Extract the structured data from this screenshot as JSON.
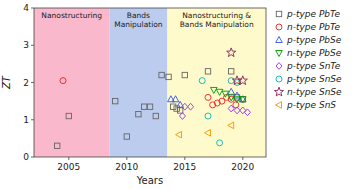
{
  "chart_data": {
    "type": "scatter",
    "xlabel": "Years",
    "ylabel": "ZT",
    "xlim": [
      2002,
      2022
    ],
    "ylim": [
      0,
      4
    ],
    "xticks": [
      2005,
      2010,
      2015,
      2020
    ],
    "yticks": [
      0,
      1,
      2,
      3,
      4
    ],
    "grid": false,
    "legend": "right",
    "regions": [
      {
        "xmin": 2002,
        "xmax": 2008.5,
        "color": "#F9B8CC",
        "label": "Nanostructuring"
      },
      {
        "xmin": 2008.5,
        "xmax": 2013.5,
        "color": "#BBCCEE",
        "label": "Bands\nManipulation"
      },
      {
        "xmin": 2013.5,
        "xmax": 2022,
        "color": "#FFFACC",
        "label": "Nanostructuring &\nBands Manipulation"
      }
    ],
    "series": [
      {
        "name": "p-type PbTe",
        "marker": "square",
        "color": "#666666",
        "x": [
          2004,
          2005,
          2009,
          2010,
          2011,
          2011.5,
          2012,
          2012.5,
          2013,
          2013.6,
          2014.0,
          2014.3,
          2014.6,
          2015,
          2017,
          2019,
          2019.5,
          2020
        ],
        "values": [
          0.3,
          1.1,
          1.5,
          0.55,
          1.15,
          1.35,
          1.35,
          1.1,
          2.2,
          2.15,
          1.35,
          1.3,
          1.25,
          2.2,
          2.3,
          2.3,
          1.6,
          1.55
        ]
      },
      {
        "name": "n-type PbTe",
        "marker": "circle",
        "color": "#EE2222",
        "x": [
          2004.5,
          2017,
          2017.4,
          2017.8,
          2018.2,
          2018.6,
          2019.0,
          2019.4
        ],
        "values": [
          2.05,
          1.6,
          1.4,
          1.45,
          1.5,
          1.6,
          1.55,
          1.4
        ]
      },
      {
        "name": "p-type PbSe",
        "marker": "triangle-up",
        "color": "#3355EE",
        "x": [
          2013.8,
          2014.2,
          2014.6,
          2019.0,
          2019.5,
          2020.0
        ],
        "values": [
          1.55,
          1.55,
          1.4,
          1.75,
          1.65,
          1.55
        ]
      },
      {
        "name": "n-type PbSe",
        "marker": "triangle-down",
        "color": "#009900",
        "x": [
          2017.5,
          2018.0,
          2018.5,
          2019.0,
          2019.5,
          2020.0
        ],
        "values": [
          1.8,
          1.75,
          1.7,
          1.6,
          1.55,
          1.55
        ]
      },
      {
        "name": "p-type SnTe",
        "marker": "diamond",
        "color": "#9933EE",
        "x": [
          2014.8,
          2015.0,
          2015.5,
          2019.0,
          2019.5,
          2020.0,
          2020.4
        ],
        "values": [
          1.1,
          1.35,
          1.35,
          1.3,
          1.25,
          1.25,
          1.2
        ]
      },
      {
        "name": "p-type SnSe",
        "marker": "circle",
        "color": "#00BBBB",
        "x": [
          2016.5,
          2017.0,
          2018.0,
          2019.0,
          2019.5
        ],
        "values": [
          2.05,
          1.1,
          0.38,
          2.05,
          2.0
        ]
      },
      {
        "name": "n-type SnSe",
        "marker": "star",
        "color": "#882255",
        "x": [
          2019.0,
          2019.5,
          2020.0
        ],
        "values": [
          2.8,
          2.05,
          2.05
        ]
      },
      {
        "name": "p-type SnS",
        "marker": "triangle-left",
        "color": "#EE9900",
        "x": [
          2014.5,
          2017.0,
          2019.0
        ],
        "values": [
          0.6,
          0.65,
          0.85
        ]
      }
    ]
  }
}
